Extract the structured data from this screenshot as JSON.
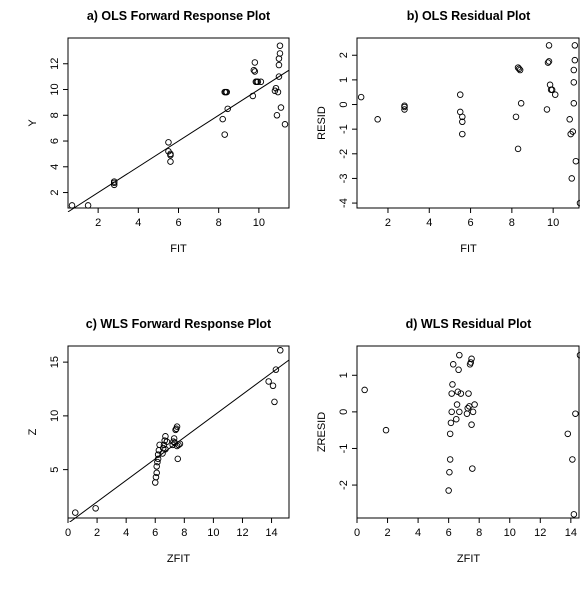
{
  "chart_data": [
    {
      "type": "scatter",
      "title": "a) OLS Forward Response Plot",
      "xlabel": "FIT",
      "ylabel": "Y",
      "xlim": [
        0.5,
        11.5
      ],
      "ylim": [
        0.8,
        14
      ],
      "xticks": [
        2,
        4,
        6,
        8,
        10
      ],
      "yticks": [
        2,
        4,
        6,
        8,
        10,
        12
      ],
      "grid": false,
      "reference_line": {
        "x": [
          0.5,
          11.5
        ],
        "y": [
          0.5,
          11.5
        ]
      },
      "points": {
        "x": [
          0.7,
          1.5,
          2.8,
          2.8,
          2.8,
          5.5,
          5.5,
          5.6,
          5.6,
          5.6,
          8.2,
          8.3,
          8.3,
          8.35,
          8.4,
          8.45,
          9.7,
          9.75,
          9.8,
          9.8,
          9.85,
          9.9,
          9.95,
          10.1,
          10.8,
          10.85,
          10.9,
          10.95,
          11.0,
          11.0,
          11.0,
          11.05,
          11.05,
          11.1,
          11.3
        ],
        "y": [
          1.0,
          1.0,
          2.6,
          2.75,
          2.85,
          5.9,
          5.2,
          4.9,
          5.0,
          4.4,
          7.7,
          6.5,
          9.8,
          9.8,
          9.8,
          8.5,
          9.5,
          11.5,
          12.1,
          11.4,
          10.6,
          10.6,
          10.6,
          10.6,
          9.9,
          10.1,
          8.0,
          9.8,
          11.9,
          11.0,
          12.4,
          13.4,
          12.8,
          8.6,
          7.3
        ]
      }
    },
    {
      "type": "scatter",
      "title": "b) OLS Residual Plot",
      "xlabel": "FIT",
      "ylabel": "RESID",
      "xlim": [
        0.5,
        11.3
      ],
      "ylim": [
        -4.2,
        2.7
      ],
      "xticks": [
        2,
        4,
        6,
        8,
        10
      ],
      "yticks": [
        -4,
        -3,
        -2,
        -1,
        0,
        1,
        2
      ],
      "grid": false,
      "points": {
        "x": [
          0.7,
          1.5,
          2.8,
          2.8,
          2.8,
          5.5,
          5.5,
          5.6,
          5.6,
          5.6,
          8.2,
          8.3,
          8.3,
          8.35,
          8.4,
          8.45,
          9.7,
          9.75,
          9.8,
          9.8,
          9.85,
          9.9,
          9.95,
          10.1,
          10.8,
          10.85,
          10.9,
          10.95,
          11.0,
          11.0,
          11.0,
          11.05,
          11.05,
          11.1,
          11.3
        ],
        "y": [
          0.3,
          -0.6,
          -0.2,
          -0.05,
          -0.1,
          0.4,
          -0.3,
          -0.7,
          -0.5,
          -1.2,
          -0.5,
          -1.8,
          1.5,
          1.45,
          1.4,
          0.05,
          -0.2,
          1.7,
          2.4,
          1.75,
          0.8,
          0.6,
          0.6,
          0.4,
          -0.6,
          -1.2,
          -3.0,
          -1.1,
          0.9,
          0.05,
          1.4,
          2.4,
          1.8,
          -2.3,
          -4.0
        ]
      }
    },
    {
      "type": "scatter",
      "title": "c) WLS Forward Response Plot",
      "xlabel": "ZFIT",
      "ylabel": "Z",
      "xlim": [
        0,
        15.2
      ],
      "ylim": [
        0.5,
        16.5
      ],
      "xticks": [
        0,
        2,
        4,
        6,
        8,
        10,
        12,
        14
      ],
      "yticks": [
        5,
        10,
        15
      ],
      "grid": false,
      "reference_line": {
        "x": [
          0,
          15.2
        ],
        "y": [
          0,
          15.2
        ]
      },
      "points": {
        "x": [
          0.5,
          1.9,
          6.0,
          6.05,
          6.1,
          6.1,
          6.15,
          6.2,
          6.2,
          6.25,
          6.3,
          6.5,
          6.55,
          6.6,
          6.65,
          6.7,
          6.7,
          6.8,
          7.2,
          7.25,
          7.3,
          7.35,
          7.4,
          7.45,
          7.5,
          7.5,
          7.55,
          7.6,
          7.7,
          13.8,
          14.1,
          14.2,
          14.3,
          14.6
        ],
        "y": [
          1.0,
          1.4,
          3.8,
          4.3,
          4.7,
          5.3,
          5.7,
          6.0,
          6.4,
          6.8,
          7.3,
          6.5,
          7.0,
          7.3,
          7.7,
          8.1,
          6.9,
          7.6,
          7.3,
          7.6,
          7.9,
          7.5,
          8.7,
          8.8,
          9.0,
          7.2,
          6.0,
          7.3,
          7.4,
          13.2,
          12.8,
          11.3,
          14.3,
          16.1
        ]
      }
    },
    {
      "type": "scatter",
      "title": "d) WLS Residual Plot",
      "xlabel": "ZFIT",
      "ylabel": "ZRESID",
      "xlim": [
        0,
        14.6
      ],
      "ylim": [
        -2.9,
        1.8
      ],
      "xticks": [
        0,
        2,
        4,
        6,
        8,
        10,
        12,
        14
      ],
      "yticks": [
        -2,
        -1,
        0,
        1
      ],
      "grid": false,
      "points": {
        "x": [
          0.5,
          1.9,
          6.0,
          6.05,
          6.1,
          6.1,
          6.15,
          6.2,
          6.2,
          6.25,
          6.3,
          6.5,
          6.55,
          6.6,
          6.65,
          6.7,
          6.7,
          6.8,
          7.2,
          7.25,
          7.3,
          7.35,
          7.4,
          7.45,
          7.5,
          7.5,
          7.55,
          7.6,
          7.7,
          13.8,
          14.1,
          14.2,
          14.3,
          14.6
        ],
        "y": [
          0.6,
          -0.5,
          -2.15,
          -1.65,
          -1.3,
          -0.6,
          -0.3,
          0.0,
          0.5,
          0.75,
          1.3,
          -0.2,
          0.2,
          0.55,
          1.15,
          1.55,
          0.0,
          0.5,
          -0.05,
          0.1,
          0.5,
          0.15,
          1.3,
          1.35,
          1.45,
          -0.35,
          -1.55,
          0.0,
          0.2,
          -0.6,
          -1.3,
          -2.8,
          -0.05,
          1.55
        ]
      }
    }
  ]
}
